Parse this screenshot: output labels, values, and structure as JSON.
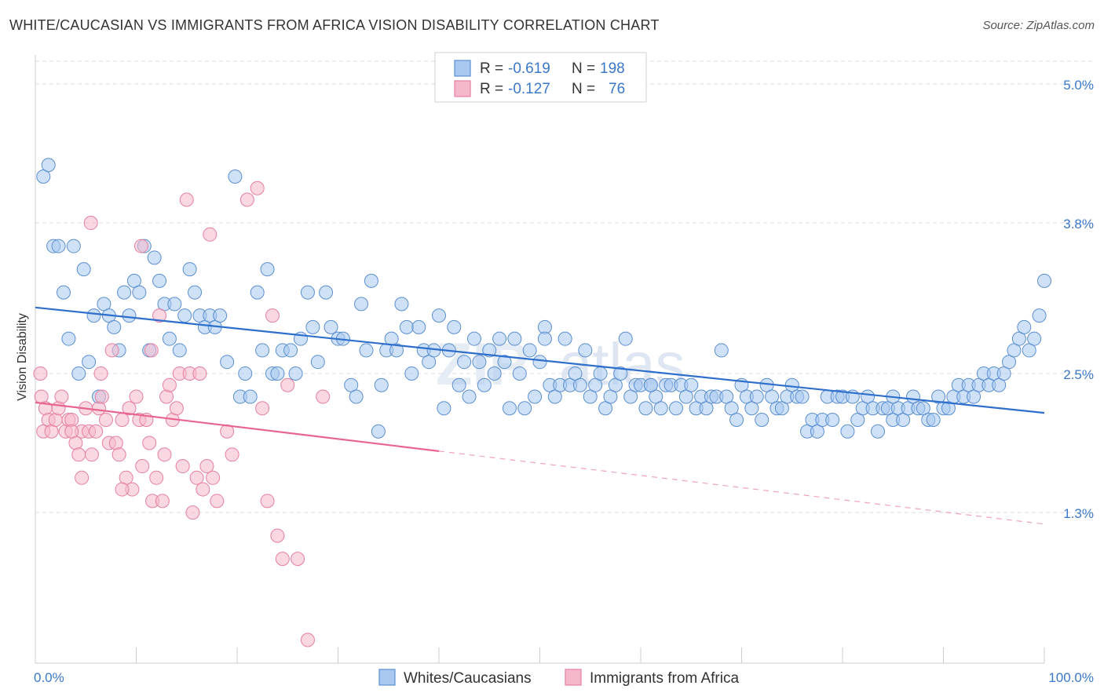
{
  "title": "WHITE/CAUCASIAN VS IMMIGRANTS FROM AFRICA VISION DISABILITY CORRELATION CHART",
  "source": "Source: ZipAtlas.com",
  "colors": {
    "blue_fill": "#a8c8f0",
    "blue_stroke": "#5b8fd0",
    "blue_line": "#2f6fcc",
    "pink_fill": "#f5b8cb",
    "pink_stroke": "#e57fa0",
    "pink_line": "#e8658f",
    "axis_text": "#3a78c9",
    "grid": "#dddddd"
  },
  "legend": {
    "rows": [
      {
        "r_label": "R =",
        "r_value": "-0.619",
        "n_label": "N =",
        "n_value": "198",
        "color": "blue"
      },
      {
        "r_label": "R =",
        "r_value": "-0.127",
        "n_label": "N =",
        "n_value": "76",
        "color": "pink"
      }
    ]
  },
  "bottom_legend": [
    "Whites/Caucasians",
    "Immigrants from Africa"
  ],
  "chart_data": {
    "type": "scatter",
    "title": "WHITE/CAUCASIAN VS IMMIGRANTS FROM AFRICA VISION DISABILITY CORRELATION CHART",
    "xlabel": "",
    "ylabel": "Vision Disability",
    "xlim": [
      0,
      100
    ],
    "ylim": [
      0.0,
      5.25
    ],
    "x_tick_labels": [
      "0.0%",
      "100.0%"
    ],
    "y_ticks": [
      1.3,
      2.5,
      3.8,
      5.0
    ],
    "y_tick_labels": [
      "1.3%",
      "2.5%",
      "3.8%",
      "5.0%"
    ],
    "grid": true,
    "legend_position": "top-center",
    "series": [
      {
        "name": "Whites/Caucasians",
        "color": "blue",
        "trend": {
          "x0": 0,
          "y0": 3.07,
          "x1": 100,
          "y1": 2.16,
          "dashed_from": null
        },
        "points": [
          [
            0.8,
            4.2
          ],
          [
            1.3,
            4.3
          ],
          [
            1.8,
            3.6
          ],
          [
            2.3,
            3.6
          ],
          [
            3.8,
            3.6
          ],
          [
            2.8,
            3.2
          ],
          [
            3.3,
            2.8
          ],
          [
            4.3,
            2.5
          ],
          [
            4.8,
            3.4
          ],
          [
            5.3,
            2.6
          ],
          [
            5.8,
            3.0
          ],
          [
            6.3,
            2.3
          ],
          [
            6.8,
            3.1
          ],
          [
            7.3,
            3.0
          ],
          [
            7.8,
            2.9
          ],
          [
            8.3,
            2.7
          ],
          [
            8.8,
            3.2
          ],
          [
            9.3,
            3.0
          ],
          [
            9.8,
            3.3
          ],
          [
            10.3,
            3.2
          ],
          [
            10.8,
            3.6
          ],
          [
            11.3,
            2.7
          ],
          [
            11.8,
            3.5
          ],
          [
            12.3,
            3.3
          ],
          [
            12.8,
            3.1
          ],
          [
            13.3,
            2.8
          ],
          [
            13.8,
            3.1
          ],
          [
            14.3,
            2.7
          ],
          [
            14.8,
            3.0
          ],
          [
            15.3,
            3.4
          ],
          [
            15.8,
            3.2
          ],
          [
            16.3,
            3.0
          ],
          [
            16.8,
            2.9
          ],
          [
            17.3,
            3.0
          ],
          [
            17.8,
            2.9
          ],
          [
            18.3,
            3.0
          ],
          [
            19.0,
            2.6
          ],
          [
            19.8,
            4.2
          ],
          [
            20.3,
            2.3
          ],
          [
            20.8,
            2.5
          ],
          [
            21.3,
            2.3
          ],
          [
            22.0,
            3.2
          ],
          [
            22.5,
            2.7
          ],
          [
            23.0,
            3.4
          ],
          [
            23.5,
            2.5
          ],
          [
            24.0,
            2.5
          ],
          [
            24.5,
            2.7
          ],
          [
            25.3,
            2.7
          ],
          [
            25.8,
            2.5
          ],
          [
            26.3,
            2.8
          ],
          [
            27.0,
            3.2
          ],
          [
            27.5,
            2.9
          ],
          [
            28.0,
            2.6
          ],
          [
            28.8,
            3.2
          ],
          [
            29.3,
            2.9
          ],
          [
            30.0,
            2.8
          ],
          [
            30.5,
            2.8
          ],
          [
            31.3,
            2.4
          ],
          [
            31.8,
            2.3
          ],
          [
            32.3,
            3.1
          ],
          [
            32.8,
            2.7
          ],
          [
            33.3,
            3.3
          ],
          [
            34.0,
            2.0
          ],
          [
            34.3,
            2.4
          ],
          [
            34.8,
            2.7
          ],
          [
            35.3,
            2.8
          ],
          [
            35.8,
            2.7
          ],
          [
            36.3,
            3.1
          ],
          [
            36.8,
            2.9
          ],
          [
            37.3,
            2.5
          ],
          [
            38.0,
            2.9
          ],
          [
            38.5,
            2.7
          ],
          [
            39.0,
            2.6
          ],
          [
            39.5,
            2.7
          ],
          [
            40.0,
            3.0
          ],
          [
            40.5,
            2.2
          ],
          [
            41.0,
            2.7
          ],
          [
            41.5,
            2.9
          ],
          [
            42.0,
            2.4
          ],
          [
            42.5,
            2.6
          ],
          [
            43.0,
            2.3
          ],
          [
            43.5,
            2.8
          ],
          [
            44.0,
            2.6
          ],
          [
            44.5,
            2.4
          ],
          [
            45.0,
            2.7
          ],
          [
            45.5,
            2.5
          ],
          [
            46.0,
            2.8
          ],
          [
            46.5,
            2.6
          ],
          [
            47.0,
            2.2
          ],
          [
            47.5,
            2.8
          ],
          [
            48.0,
            2.5
          ],
          [
            48.5,
            2.2
          ],
          [
            49.0,
            2.7
          ],
          [
            49.5,
            2.3
          ],
          [
            50.0,
            2.6
          ],
          [
            50.5,
            2.9
          ],
          [
            51.0,
            2.4
          ],
          [
            51.5,
            2.3
          ],
          [
            52.0,
            2.4
          ],
          [
            52.5,
            2.8
          ],
          [
            53.0,
            2.4
          ],
          [
            53.5,
            2.5
          ],
          [
            54.0,
            2.4
          ],
          [
            54.5,
            2.7
          ],
          [
            55.0,
            2.3
          ],
          [
            55.5,
            2.4
          ],
          [
            56.0,
            2.5
          ],
          [
            56.5,
            2.2
          ],
          [
            57.0,
            2.3
          ],
          [
            57.5,
            2.4
          ],
          [
            58.0,
            2.5
          ],
          [
            58.5,
            2.8
          ],
          [
            59.0,
            2.3
          ],
          [
            59.5,
            2.4
          ],
          [
            60.0,
            2.4
          ],
          [
            60.5,
            2.2
          ],
          [
            61.0,
            2.4
          ],
          [
            61.5,
            2.3
          ],
          [
            62.0,
            2.2
          ],
          [
            62.5,
            2.4
          ],
          [
            63.0,
            2.4
          ],
          [
            63.5,
            2.2
          ],
          [
            64.0,
            2.4
          ],
          [
            64.5,
            2.3
          ],
          [
            65.0,
            2.4
          ],
          [
            65.5,
            2.2
          ],
          [
            66.0,
            2.3
          ],
          [
            66.5,
            2.2
          ],
          [
            67.0,
            2.3
          ],
          [
            67.5,
            2.3
          ],
          [
            68.0,
            2.7
          ],
          [
            68.5,
            2.3
          ],
          [
            69.0,
            2.2
          ],
          [
            69.5,
            2.1
          ],
          [
            70.0,
            2.4
          ],
          [
            70.5,
            2.3
          ],
          [
            71.0,
            2.2
          ],
          [
            71.5,
            2.3
          ],
          [
            72.0,
            2.1
          ],
          [
            72.5,
            2.4
          ],
          [
            73.0,
            2.3
          ],
          [
            73.5,
            2.2
          ],
          [
            74.0,
            2.2
          ],
          [
            74.5,
            2.3
          ],
          [
            75.0,
            2.4
          ],
          [
            75.5,
            2.3
          ],
          [
            76.0,
            2.3
          ],
          [
            76.5,
            2.0
          ],
          [
            77.0,
            2.1
          ],
          [
            77.5,
            2.0
          ],
          [
            78.0,
            2.1
          ],
          [
            78.5,
            2.3
          ],
          [
            79.0,
            2.1
          ],
          [
            79.5,
            2.3
          ],
          [
            80.0,
            2.3
          ],
          [
            80.5,
            2.0
          ],
          [
            81.0,
            2.3
          ],
          [
            81.5,
            2.1
          ],
          [
            82.0,
            2.2
          ],
          [
            82.5,
            2.3
          ],
          [
            83.0,
            2.2
          ],
          [
            83.5,
            2.0
          ],
          [
            84.0,
            2.2
          ],
          [
            84.5,
            2.2
          ],
          [
            85.0,
            2.1
          ],
          [
            85.5,
            2.2
          ],
          [
            86.0,
            2.1
          ],
          [
            86.5,
            2.2
          ],
          [
            87.0,
            2.3
          ],
          [
            87.5,
            2.2
          ],
          [
            88.0,
            2.2
          ],
          [
            88.5,
            2.1
          ],
          [
            89.0,
            2.1
          ],
          [
            89.5,
            2.3
          ],
          [
            90.0,
            2.2
          ],
          [
            90.5,
            2.2
          ],
          [
            91.0,
            2.3
          ],
          [
            91.5,
            2.4
          ],
          [
            92.0,
            2.3
          ],
          [
            92.5,
            2.4
          ],
          [
            93.0,
            2.3
          ],
          [
            93.5,
            2.4
          ],
          [
            94.0,
            2.5
          ],
          [
            94.5,
            2.4
          ],
          [
            95.0,
            2.5
          ],
          [
            95.5,
            2.4
          ],
          [
            96.0,
            2.5
          ],
          [
            96.5,
            2.6
          ],
          [
            97.0,
            2.7
          ],
          [
            97.5,
            2.8
          ],
          [
            98.0,
            2.9
          ],
          [
            98.5,
            2.7
          ],
          [
            99.0,
            2.8
          ],
          [
            99.5,
            3.0
          ],
          [
            100.0,
            3.3
          ],
          [
            85.0,
            2.3
          ],
          [
            50.5,
            2.8
          ],
          [
            61.0,
            2.4
          ]
        ]
      },
      {
        "name": "Immigrants from Africa",
        "color": "pink",
        "trend": {
          "x0": 0,
          "y0": 2.25,
          "x1": 100,
          "y1": 1.2,
          "dashed_from": 40
        },
        "points": [
          [
            0.5,
            2.5
          ],
          [
            0.6,
            2.3
          ],
          [
            0.8,
            2.0
          ],
          [
            1.0,
            2.2
          ],
          [
            1.3,
            2.1
          ],
          [
            1.6,
            2.0
          ],
          [
            2.0,
            2.1
          ],
          [
            2.3,
            2.2
          ],
          [
            2.6,
            2.3
          ],
          [
            3.0,
            2.0
          ],
          [
            3.3,
            2.1
          ],
          [
            3.6,
            2.1
          ],
          [
            4.0,
            1.9
          ],
          [
            4.3,
            1.8
          ],
          [
            4.6,
            2.0
          ],
          [
            5.0,
            2.2
          ],
          [
            5.3,
            2.0
          ],
          [
            5.6,
            1.8
          ],
          [
            6.0,
            2.0
          ],
          [
            6.3,
            2.2
          ],
          [
            6.6,
            2.3
          ],
          [
            7.0,
            2.1
          ],
          [
            7.3,
            1.9
          ],
          [
            7.6,
            2.7
          ],
          [
            8.0,
            1.9
          ],
          [
            8.3,
            1.8
          ],
          [
            8.6,
            2.1
          ],
          [
            9.0,
            1.6
          ],
          [
            9.3,
            2.2
          ],
          [
            9.6,
            1.5
          ],
          [
            10.0,
            2.3
          ],
          [
            10.3,
            2.1
          ],
          [
            10.6,
            1.7
          ],
          [
            11.0,
            2.1
          ],
          [
            11.3,
            1.9
          ],
          [
            11.6,
            1.4
          ],
          [
            12.0,
            1.6
          ],
          [
            12.3,
            3.0
          ],
          [
            12.6,
            1.4
          ],
          [
            13.0,
            2.3
          ],
          [
            13.3,
            2.4
          ],
          [
            13.6,
            2.1
          ],
          [
            14.0,
            2.2
          ],
          [
            14.3,
            2.5
          ],
          [
            14.6,
            1.7
          ],
          [
            15.0,
            4.0
          ],
          [
            15.3,
            2.5
          ],
          [
            15.6,
            1.3
          ],
          [
            16.0,
            1.6
          ],
          [
            16.3,
            2.5
          ],
          [
            16.6,
            1.5
          ],
          [
            17.0,
            1.7
          ],
          [
            17.3,
            3.7
          ],
          [
            17.6,
            1.6
          ],
          [
            18.0,
            1.4
          ],
          [
            19.0,
            2.0
          ],
          [
            19.5,
            1.8
          ],
          [
            21.0,
            4.0
          ],
          [
            22.0,
            4.1
          ],
          [
            22.5,
            2.2
          ],
          [
            23.0,
            1.4
          ],
          [
            23.5,
            3.0
          ],
          [
            24.0,
            1.1
          ],
          [
            24.5,
            0.9
          ],
          [
            25.0,
            2.4
          ],
          [
            26.0,
            0.9
          ],
          [
            27.0,
            0.2
          ],
          [
            28.5,
            2.3
          ],
          [
            5.5,
            3.8
          ],
          [
            10.5,
            3.6
          ],
          [
            11.5,
            2.7
          ],
          [
            6.5,
            2.5
          ],
          [
            4.6,
            1.6
          ],
          [
            8.6,
            1.5
          ],
          [
            3.6,
            2.0
          ],
          [
            12.8,
            1.8
          ]
        ]
      }
    ]
  }
}
